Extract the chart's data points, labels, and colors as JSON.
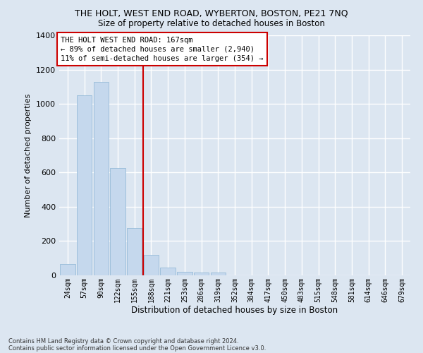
{
  "title_line1": "THE HOLT, WEST END ROAD, WYBERTON, BOSTON, PE21 7NQ",
  "title_line2": "Size of property relative to detached houses in Boston",
  "xlabel": "Distribution of detached houses by size in Boston",
  "ylabel": "Number of detached properties",
  "categories": [
    "24sqm",
    "57sqm",
    "90sqm",
    "122sqm",
    "155sqm",
    "188sqm",
    "221sqm",
    "253sqm",
    "286sqm",
    "319sqm",
    "352sqm",
    "384sqm",
    "417sqm",
    "450sqm",
    "483sqm",
    "515sqm",
    "548sqm",
    "581sqm",
    "614sqm",
    "646sqm",
    "679sqm"
  ],
  "values": [
    65,
    1050,
    1130,
    625,
    275,
    120,
    45,
    22,
    18,
    18,
    0,
    0,
    0,
    0,
    0,
    0,
    0,
    0,
    0,
    0,
    0
  ],
  "bar_color": "#c5d8ed",
  "bar_edgecolor": "#8ab4d4",
  "vline_color": "#cc0000",
  "ylim": [
    0,
    1400
  ],
  "yticks": [
    0,
    200,
    400,
    600,
    800,
    1000,
    1200,
    1400
  ],
  "annotation_text": "THE HOLT WEST END ROAD: 167sqm\n← 89% of detached houses are smaller (2,940)\n11% of semi-detached houses are larger (354) →",
  "annotation_box_edgecolor": "#cc0000",
  "footnote_line1": "Contains HM Land Registry data © Crown copyright and database right 2024.",
  "footnote_line2": "Contains public sector information licensed under the Open Government Licence v3.0.",
  "bg_color": "#dce6f1",
  "plot_bg_color": "#dce6f1",
  "grid_color": "#ffffff"
}
